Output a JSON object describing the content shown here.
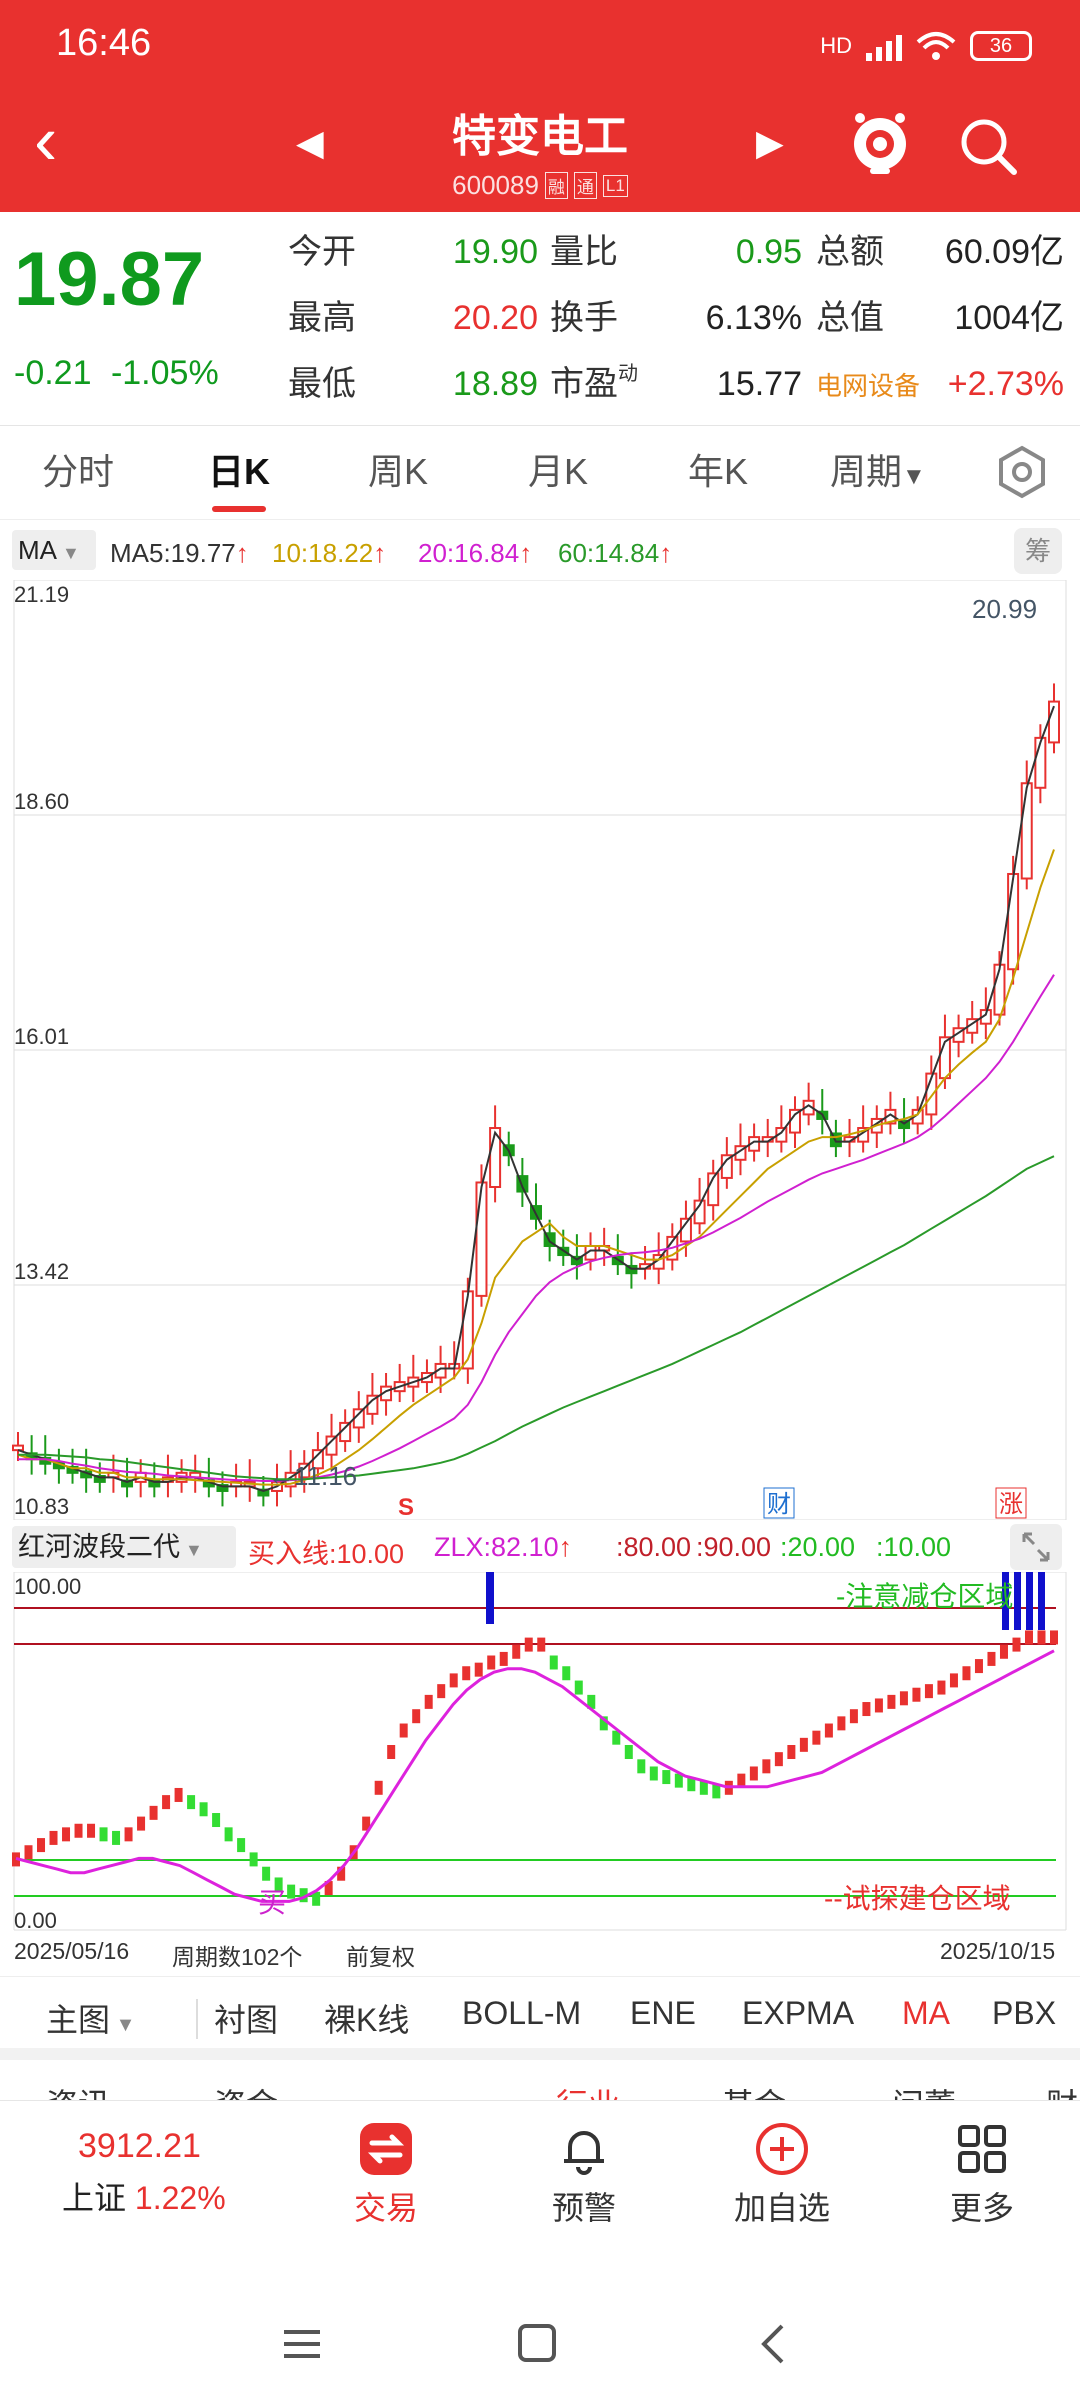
{
  "status": {
    "time": "16:46",
    "network": "HD",
    "battery": "36"
  },
  "header": {
    "name": "特变电工",
    "code": "600089",
    "tags": [
      "融",
      "通",
      "L1"
    ]
  },
  "quote": {
    "price": "19.87",
    "change": "-0.21",
    "change_pct": "-1.05%",
    "rows": [
      {
        "l1": "今开",
        "v1": "19.90",
        "l2": "量比",
        "v2": "0.95",
        "l3": "总额",
        "v3": "60.09亿"
      },
      {
        "l1": "最高",
        "v1": "20.20",
        "l2": "换手",
        "v2": "6.13%",
        "l3": "总值",
        "v3": "1004亿"
      },
      {
        "l1": "最低",
        "v1": "18.89",
        "l2": "市盈",
        "l2_sup": "动",
        "v2": "15.77",
        "l3": "电网设备",
        "v3": "+2.73%"
      }
    ]
  },
  "period_tabs": [
    "分时",
    "日K",
    "周K",
    "月K",
    "年K",
    "周期"
  ],
  "active_period": "日K",
  "ma": {
    "selector": "MA",
    "items": [
      {
        "label": "MA5:19.77",
        "color": "#333333"
      },
      {
        "label": "10:18.22",
        "color": "#c8a000"
      },
      {
        "label": "20:16.84",
        "color": "#d020d0"
      },
      {
        "label": "60:14.84",
        "color": "#2a9a2a"
      }
    ],
    "chip_button": "筹"
  },
  "kchart": {
    "y_labels": [
      "21.19",
      "18.60",
      "16.01",
      "13.42",
      "10.83"
    ],
    "high_label": "20.99",
    "low_label": "11.16",
    "markers": [
      {
        "text": "S",
        "color": "#e8312f"
      },
      {
        "text": "财",
        "color": "#1e6fd0"
      },
      {
        "text": "涨",
        "color": "#e8312f"
      }
    ]
  },
  "indicator": {
    "selector": "红河波段二代",
    "buy_line": "买入线:10.00",
    "zlx": "ZLX:82.10",
    "levels": [
      ":80.00",
      ":90.00",
      ":20.00",
      ":10.00"
    ],
    "y_top": "100.00",
    "y_bottom": "0.00",
    "zone_high": "-注意减仓区域",
    "zone_low": "--试探建仓区域",
    "buy_mark": "买"
  },
  "date_row": {
    "start": "2025/05/16",
    "periods": "周期数102个",
    "adjust": "前复权",
    "end": "2025/10/15"
  },
  "indicator_tabs": [
    "主图",
    "衬图",
    "裸K线",
    "BOLL-M",
    "ENE",
    "EXPMA",
    "MA",
    "PBX"
  ],
  "active_indicator": "MA",
  "cut_row": [
    "资讯",
    "资金",
    "行业",
    "基金",
    "问董",
    "财"
  ],
  "bottom_bar": {
    "index_value": "3912.21",
    "index_name": "上证",
    "index_pct": "1.22%",
    "items": [
      "交易",
      "预警",
      "加自选",
      "更多"
    ]
  },
  "chart_data": [
    {
      "type": "candlestick",
      "title": "",
      "x_range": [
        "2025/05/16",
        "2025/10/15"
      ],
      "ylim": [
        10.83,
        21.19
      ],
      "period_count": 102,
      "series": [
        {
          "name": "MA5",
          "values": [
            11.6,
            11.55,
            11.5,
            11.45,
            11.4,
            11.35,
            11.3,
            11.3,
            11.25,
            11.3,
            11.25,
            11.25,
            11.3,
            11.3,
            11.25,
            11.2,
            11.2,
            11.2,
            11.15,
            11.2,
            11.3,
            11.4,
            11.55,
            11.7,
            11.85,
            12.0,
            12.15,
            12.25,
            12.3,
            12.35,
            12.4,
            12.5,
            12.5,
            13.3,
            14.5,
            15.1,
            14.9,
            14.5,
            14.2,
            13.9,
            13.8,
            13.7,
            13.8,
            13.8,
            13.7,
            13.6,
            13.6,
            13.7,
            13.9,
            14.1,
            14.3,
            14.6,
            14.8,
            14.9,
            15.0,
            15.0,
            15.1,
            15.3,
            15.4,
            15.3,
            15.0,
            15.0,
            15.1,
            15.2,
            15.3,
            15.2,
            15.3,
            15.7,
            16.1,
            16.2,
            16.3,
            16.4,
            16.9,
            17.9,
            18.9,
            19.4,
            19.8
          ]
        },
        {
          "name": "MA10",
          "values": [
            11.55,
            11.5,
            11.5,
            11.45,
            11.4,
            11.4,
            11.35,
            11.35,
            11.3,
            11.3,
            11.28,
            11.28,
            11.28,
            11.27,
            11.26,
            11.25,
            11.24,
            11.23,
            11.22,
            11.22,
            11.23,
            11.27,
            11.33,
            11.4,
            11.5,
            11.6,
            11.72,
            11.85,
            11.98,
            12.1,
            12.2,
            12.3,
            12.4,
            12.6,
            13.0,
            13.5,
            13.7,
            13.9,
            14.0,
            14.1,
            13.95,
            13.85,
            13.85,
            13.85,
            13.8,
            13.75,
            13.7,
            13.7,
            13.75,
            13.85,
            13.95,
            14.1,
            14.25,
            14.4,
            14.55,
            14.7,
            14.8,
            14.9,
            15.0,
            15.05,
            15.05,
            15.08,
            15.12,
            15.18,
            15.22,
            15.25,
            15.3,
            15.5,
            15.7,
            15.85,
            15.98,
            16.1,
            16.35,
            16.8,
            17.3,
            17.8,
            18.22
          ]
        },
        {
          "name": "MA20",
          "values": [
            11.5,
            11.5,
            11.5,
            11.48,
            11.45,
            11.43,
            11.4,
            11.38,
            11.36,
            11.35,
            11.34,
            11.32,
            11.31,
            11.3,
            11.29,
            11.28,
            11.27,
            11.27,
            11.26,
            11.26,
            11.27,
            11.28,
            11.3,
            11.33,
            11.37,
            11.42,
            11.48,
            11.55,
            11.62,
            11.7,
            11.78,
            11.86,
            11.95,
            12.1,
            12.35,
            12.65,
            12.9,
            13.1,
            13.3,
            13.45,
            13.55,
            13.62,
            13.68,
            13.72,
            13.75,
            13.77,
            13.78,
            13.8,
            13.83,
            13.88,
            13.93,
            14.0,
            14.08,
            14.16,
            14.25,
            14.34,
            14.42,
            14.5,
            14.58,
            14.65,
            14.7,
            14.75,
            14.8,
            14.86,
            14.92,
            14.98,
            15.05,
            15.15,
            15.28,
            15.42,
            15.56,
            15.7,
            15.88,
            16.1,
            16.35,
            16.6,
            16.84
          ]
        },
        {
          "name": "MA60",
          "values": [
            11.55,
            11.55,
            11.55,
            11.54,
            11.53,
            11.52,
            11.5,
            11.49,
            11.47,
            11.45,
            11.43,
            11.41,
            11.39,
            11.37,
            11.35,
            11.33,
            11.31,
            11.3,
            11.29,
            11.28,
            11.28,
            11.28,
            11.29,
            11.3,
            11.31,
            11.32,
            11.34,
            11.36,
            11.38,
            11.4,
            11.43,
            11.46,
            11.5,
            11.56,
            11.63,
            11.7,
            11.78,
            11.86,
            11.93,
            12.0,
            12.07,
            12.13,
            12.19,
            12.25,
            12.31,
            12.37,
            12.43,
            12.49,
            12.55,
            12.62,
            12.69,
            12.76,
            12.83,
            12.9,
            12.98,
            13.06,
            13.14,
            13.22,
            13.3,
            13.38,
            13.46,
            13.54,
            13.62,
            13.7,
            13.78,
            13.86,
            13.95,
            14.04,
            14.13,
            14.22,
            14.31,
            14.4,
            14.5,
            14.6,
            14.7,
            14.77,
            14.84
          ]
        }
      ]
    },
    {
      "type": "line",
      "title": "",
      "ylim": [
        0,
        100
      ],
      "series": [
        {
          "name": "",
          "values": [
            20,
            22,
            24,
            26,
            27,
            28,
            28,
            27,
            26,
            27,
            30,
            33,
            36,
            38,
            36,
            34,
            31,
            27,
            24,
            20,
            16,
            13,
            11,
            10,
            9,
            12,
            16,
            22,
            30,
            40,
            50,
            56,
            60,
            64,
            67,
            70,
            72,
            73,
            75,
            76,
            78,
            80,
            80,
            75,
            72,
            68,
            64,
            58,
            54,
            50,
            46,
            44,
            43,
            42,
            41,
            40,
            39,
            40,
            42,
            44,
            46,
            48,
            50,
            52,
            54,
            56,
            58,
            60,
            62,
            63,
            64,
            65,
            66,
            67,
            68,
            70,
            72,
            74,
            76,
            78,
            80,
            82,
            82,
            82
          ]
        },
        {
          "name": "",
          "values": [
            20,
            19,
            18,
            17,
            16,
            16,
            17,
            18,
            19,
            20,
            20,
            19,
            18,
            16,
            14,
            12,
            10,
            9,
            8,
            8,
            8,
            9,
            11,
            14,
            18,
            23,
            29,
            35,
            41,
            47,
            53,
            58,
            63,
            67,
            70,
            72,
            73,
            73,
            72,
            70,
            68,
            65,
            62,
            59,
            56,
            53,
            50,
            47,
            45,
            43,
            42,
            41,
            40,
            40,
            40,
            40,
            41,
            42,
            43,
            44,
            46,
            48,
            50,
            52,
            54,
            56,
            58,
            60,
            62,
            64,
            66,
            68,
            70,
            72,
            74,
            76,
            78
          ]
        }
      ]
    }
  ]
}
